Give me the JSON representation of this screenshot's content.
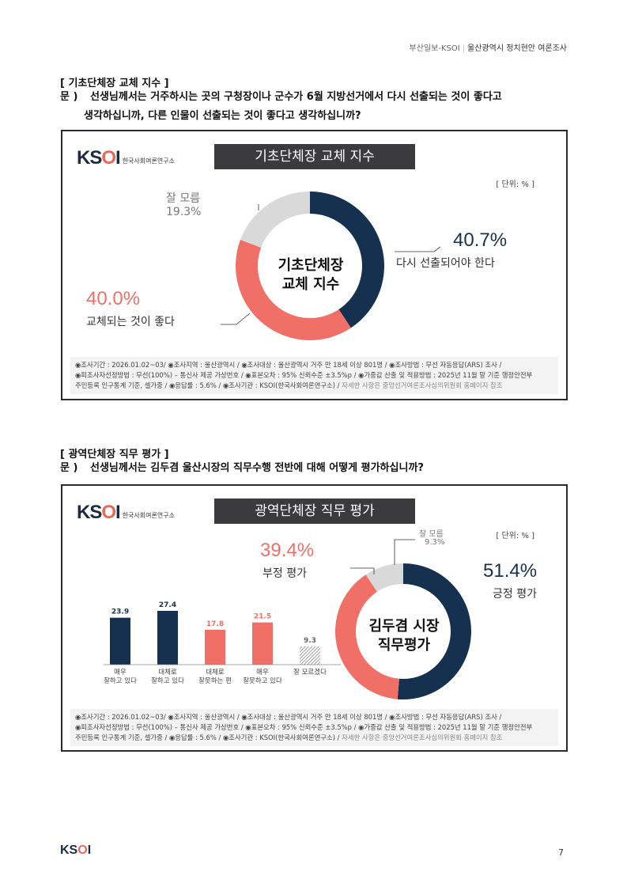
{
  "header": {
    "org": "부산일보-KSOI",
    "sep": "|",
    "title": "울산광역시 정치현안 여론조사"
  },
  "section1": {
    "title": "[ 기초단체장 교체 지수 ]",
    "q_mark": "문 )",
    "q_line1": "선생님께서는 거주하시는 곳의 구청장이나 군수가 6월 지방선거에서 다시 선출되는 것이 좋다고",
    "q_line2": "생각하십니까, 다른 인물이 선출되는 것이 좋다고 생각하십니까?",
    "panel_title": "기초단체장 교체 지수",
    "unit": "[ 단위: % ]",
    "center_line1": "기초단체장",
    "center_line2": "교체 지수",
    "chart_data": {
      "type": "pie",
      "title": "기초단체장 교체 지수",
      "categories": [
        "다시 선출되어야 한다",
        "교체되는 것이 좋다",
        "잘 모름"
      ],
      "values": [
        40.7,
        40.0,
        19.3
      ],
      "pct_labels": [
        "40.7%",
        "40.0%",
        "19.3%"
      ],
      "colors": [
        "#16304f",
        "#f07068",
        "#d9d9d9"
      ]
    }
  },
  "section2": {
    "title": "[ 광역단체장 직무 평가 ]",
    "q_mark": "문 )",
    "q_line1": "선생님께서는 김두겸 울산시장의 직무수행 전반에 대해 어떻게 평가하십니까?",
    "panel_title": "광역단체장 직무 평가",
    "unit": "[ 단위: % ]",
    "center_line1": "김두겸 시장",
    "center_line2": "직무평가",
    "chart_data": [
      {
        "type": "pie",
        "title": "광역단체장 직무 평가",
        "categories": [
          "긍정 평가",
          "부정 평가",
          "잘 모름"
        ],
        "values": [
          51.4,
          39.4,
          9.3
        ],
        "pct_labels": [
          "51.4%",
          "39.4%",
          "9.3%"
        ],
        "colors": [
          "#16304f",
          "#f07068",
          "#d9d9d9"
        ]
      },
      {
        "type": "bar",
        "categories": [
          [
            "매우",
            "잘하고 있다"
          ],
          [
            "대체로",
            "잘하고 있다"
          ],
          [
            "대체로",
            "잘못하는 편"
          ],
          [
            "매우",
            "잘못하고 있다"
          ],
          [
            "잘 모르겠다"
          ]
        ],
        "values": [
          23.9,
          27.4,
          17.8,
          21.5,
          9.3
        ],
        "value_labels": [
          "23.9",
          "27.4",
          "17.8",
          "21.5",
          "9.3"
        ],
        "colors": [
          "#16304f",
          "#16304f",
          "#f07068",
          "#f07068",
          "hatch"
        ],
        "ylim": [
          0,
          30
        ]
      }
    ]
  },
  "footnote": {
    "line1": "◉조사기간 : 2026.01.02~03/ ◉조사지역 : 울산광역시 / ◉조사대상 : 울산광역시 거주 만 18세 이상 801명 / ◉조사방법 : 무선 자동응답(ARS) 조사 /",
    "line2": "◉피조사자선정방법 : 무선(100%) – 통신사 제공 가상번호 / ◉표본오차 : 95% 신뢰수준 ±3.5%p / ◉가중값 산출 및 적용방법 : 2025년 11월 말 기준 행정안전부",
    "line3a": "주민등록 인구통계 기준, 셀가중 / ◉응답률 : 5.6% / ◉조사기관 : KSOI(한국사회여론연구소) /",
    "line3b": "자세한 사항은 중앙선거여론조사심의위원회 홈페이지 참조"
  },
  "logo": {
    "mark_k": "KS",
    "mark_o": "O",
    "mark_i": "I",
    "sub": "한국사회여론연구소"
  },
  "page_number": "7"
}
